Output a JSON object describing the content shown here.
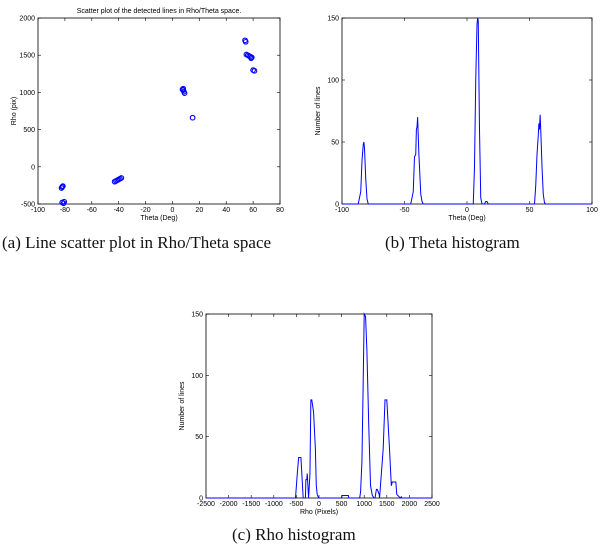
{
  "captions": {
    "a": "(a) Line scatter plot in Rho/Theta space",
    "b": "(b) Theta histogram",
    "c": "(c) Rho histogram"
  },
  "colors": {
    "series": "#0000ff",
    "axes": "#000000"
  },
  "chart_data": [
    {
      "id": "a",
      "type": "scatter",
      "title": "Scatter plot of the detected lines in Rho/Theta space.",
      "xlabel": "Theta (Deg)",
      "ylabel": "Rho (pix)",
      "xlim": [
        -100,
        80
      ],
      "ylim": [
        -500,
        2000
      ],
      "xticks": [
        -100,
        -80,
        -60,
        -40,
        -20,
        0,
        20,
        40,
        60,
        80
      ],
      "yticks": [
        -500,
        0,
        500,
        1000,
        1500,
        2000
      ],
      "marker": "circle-open",
      "points": [
        [
          -82,
          -270
        ],
        [
          -82.5,
          -285
        ],
        [
          -81.5,
          -260
        ],
        [
          -82,
          -480
        ],
        [
          -81,
          -490
        ],
        [
          -80.5,
          -470
        ],
        [
          -43,
          -200
        ],
        [
          -42,
          -190
        ],
        [
          -41,
          -180
        ],
        [
          -40,
          -170
        ],
        [
          -39,
          -160
        ],
        [
          -38,
          -150
        ],
        [
          8,
          1050
        ],
        [
          8,
          1030
        ],
        [
          8.5,
          1010
        ],
        [
          9,
          990
        ],
        [
          7.5,
          1040
        ],
        [
          15,
          660
        ],
        [
          54,
          1700
        ],
        [
          54.5,
          1680
        ],
        [
          55,
          1510
        ],
        [
          56,
          1500
        ],
        [
          57,
          1490
        ],
        [
          58,
          1480
        ],
        [
          59,
          1470
        ],
        [
          58.5,
          1460
        ],
        [
          60,
          1300
        ],
        [
          61,
          1290
        ]
      ]
    },
    {
      "id": "b",
      "type": "line",
      "title": "",
      "xlabel": "Theta (Deg)",
      "ylabel": "Number of lines",
      "xlim": [
        -100,
        100
      ],
      "ylim": [
        0,
        150
      ],
      "xticks": [
        -100,
        -50,
        0,
        50,
        100
      ],
      "yticks": [
        0,
        50,
        100,
        150
      ],
      "series": [
        {
          "x": [
            -100,
            -87,
            -85,
            -84,
            -83,
            -82.5,
            -82,
            -81,
            -80,
            -79,
            -78,
            -45,
            -43,
            -42,
            -41,
            -40.5,
            -40,
            -39.5,
            -39,
            -38.5,
            -38,
            -37,
            -36,
            -35,
            -34,
            5,
            6,
            7,
            8,
            8.5,
            9,
            10,
            11,
            12,
            14,
            15,
            16,
            17,
            54,
            55,
            56,
            57,
            57.5,
            58,
            58.5,
            59,
            59.5,
            60,
            61,
            62,
            63,
            100
          ],
          "y": [
            0,
            0,
            10,
            35,
            48,
            50,
            45,
            20,
            4,
            0,
            0,
            0,
            10,
            38,
            40,
            60,
            62,
            70,
            55,
            40,
            30,
            8,
            2,
            0,
            0,
            0,
            30,
            100,
            145,
            150,
            148,
            60,
            5,
            0,
            0,
            2,
            2,
            0,
            0,
            15,
            40,
            55,
            65,
            60,
            72,
            60,
            45,
            30,
            8,
            1,
            0,
            0
          ]
        }
      ]
    },
    {
      "id": "c",
      "type": "line",
      "title": "",
      "xlabel": "Rho (Pixels)",
      "ylabel": "Number of lines",
      "xlim": [
        -2500,
        2500
      ],
      "ylim": [
        0,
        150
      ],
      "xticks": [
        -2500,
        -2000,
        -1500,
        -1000,
        -500,
        0,
        500,
        1000,
        1500,
        2000,
        2500
      ],
      "yticks": [
        0,
        50,
        100,
        150
      ],
      "series": [
        {
          "x": [
            -2500,
            -520,
            -480,
            -450,
            -400,
            -380,
            -350,
            -300,
            -290,
            -270,
            -260,
            -230,
            -200,
            -180,
            -160,
            -120,
            -80,
            -60,
            -40,
            -20,
            0,
            10,
            500,
            510,
            650,
            660,
            900,
            920,
            950,
            980,
            1000,
            1030,
            1060,
            1100,
            1140,
            1180,
            1220,
            1240,
            1270,
            1290,
            1330,
            1340,
            1420,
            1460,
            1500,
            1560,
            1600,
            1620,
            1640,
            1660,
            1700,
            1720,
            1800,
            1820,
            1830,
            2500
          ],
          "y": [
            0,
            0,
            20,
            33,
            33,
            20,
            0,
            0,
            15,
            15,
            20,
            0,
            20,
            80,
            80,
            70,
            40,
            10,
            3,
            1,
            0,
            0,
            0,
            2,
            2,
            0,
            0,
            5,
            30,
            100,
            150,
            148,
            120,
            60,
            10,
            2,
            0,
            0,
            7,
            7,
            3,
            0,
            40,
            80,
            80,
            40,
            10,
            13,
            13,
            13,
            13,
            3,
            0,
            1,
            0,
            0
          ]
        }
      ]
    }
  ]
}
